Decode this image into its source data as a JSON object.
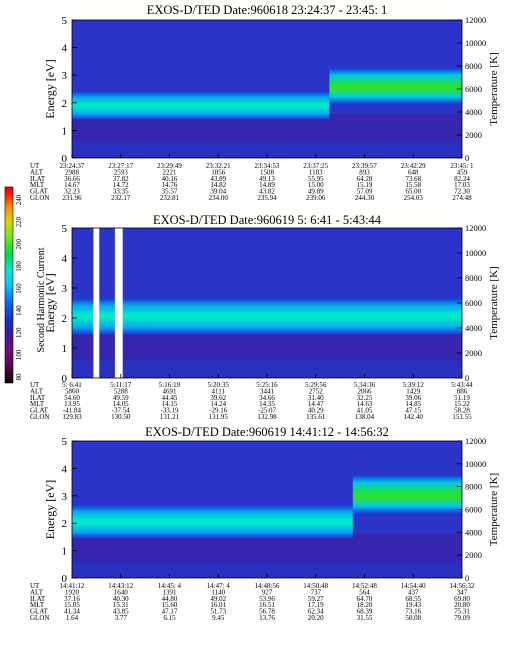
{
  "colorbar": {
    "label": "Second Harmonic Current",
    "ticks": [
      "240",
      "220",
      "200",
      "180",
      "160",
      "140",
      "120",
      "100",
      "80"
    ],
    "colors": [
      "#000000",
      "#5a0050",
      "#7a0a78",
      "#3a1aa0",
      "#1530c8",
      "#0a6ef0",
      "#00c8ff",
      "#00e8c0",
      "#00dc3c",
      "#6ae81a",
      "#d8d800",
      "#ff8c00",
      "#ff1e00",
      "#f00000"
    ]
  },
  "chart_data": [
    {
      "type": "heatmap",
      "title": "EXOS-D/TED   Date:960618  23:24:37 - 23:45: 1",
      "ylabel": "Energy [eV]",
      "y2label": "Temperature [K]",
      "ylim": [
        0,
        5
      ],
      "y2lim": [
        0,
        12000
      ],
      "yticks": [
        "0",
        "1",
        "2",
        "3",
        "4",
        "5"
      ],
      "y2ticks": [
        "0",
        "2000",
        "4000",
        "6000",
        "8000",
        "10000",
        "12000"
      ],
      "row_labels": [
        "UT",
        "ALT",
        "ILAT",
        "MLT",
        "GLAT",
        "GLON"
      ],
      "columns": [
        [
          "23:24:37",
          "2988",
          "36.66",
          "14.67",
          "32.23",
          "231.96"
        ],
        [
          "23:27:17",
          "2593",
          "37.82",
          "14.72",
          "33.35",
          "232.17"
        ],
        [
          "23:29:49",
          "2221",
          "40.16",
          "14.76",
          "35.57",
          "232.81"
        ],
        [
          "23:32:21",
          "1856",
          "43.89",
          "14.82",
          "39.04",
          "234.00"
        ],
        [
          "23:34:53",
          "1508",
          "49.13",
          "14.89",
          "43.82",
          "235.94"
        ],
        [
          "23:37:25",
          "1183",
          "55.95",
          "15.00",
          "49.89",
          "239.06"
        ],
        [
          "23:39:57",
          "893",
          "64.28",
          "15.19",
          "57.09",
          "244.30"
        ],
        [
          "23:42:29",
          "648",
          "73.68",
          "15.58",
          "65.00",
          "254.03"
        ],
        [
          "23:45: 1",
          "459",
          "82.24",
          "17.03",
          "72.30",
          "274.48"
        ]
      ],
      "bands": [
        {
          "x0": 0,
          "x1": 0.66,
          "energy_lo": 1.75,
          "energy_hi": 2.05,
          "level": "high"
        },
        {
          "x0": 0.66,
          "x1": 1.0,
          "energy_lo": 2.3,
          "energy_hi": 2.9,
          "level": "high"
        }
      ]
    },
    {
      "type": "heatmap",
      "title": "EXOS-D/TED   Date:960619  5: 6:41 - 5:43:44",
      "ylabel": "Energy [eV]",
      "y2label": "Temperature [K]",
      "ylim": [
        0,
        5
      ],
      "y2lim": [
        0,
        12000
      ],
      "yticks": [
        "0",
        "1",
        "2",
        "3",
        "4",
        "5"
      ],
      "y2ticks": [
        "0",
        "2000",
        "4000",
        "6000",
        "8000",
        "10000",
        "12000"
      ],
      "row_labels": [
        "UT",
        "ALT",
        "ILAT",
        "MLT",
        "GLAT",
        "GLON"
      ],
      "columns": [
        [
          "5: 6:41",
          "5860",
          "54.60",
          "13.95",
          "-41.84",
          "129.83"
        ],
        [
          "5:11:17",
          "5288",
          "49.59",
          "14.05",
          "-37.54",
          "130.50"
        ],
        [
          "5:16:19",
          "4691",
          "44.45",
          "14.15",
          "-33.19",
          "131.21"
        ],
        [
          "5:20:35",
          "4111",
          "39.62",
          "14.24",
          "-29.16",
          "131.95"
        ],
        [
          "5:25:16",
          "3441",
          "34.66",
          "14.35",
          "-25.07",
          "132.98"
        ],
        [
          "5:29:56",
          "2752",
          "31.40",
          "14.47",
          "40.29",
          "135.61"
        ],
        [
          "5:34:36",
          "2066",
          "32.25",
          "14.63",
          "41.05",
          "138.04"
        ],
        [
          "5:39:12",
          "1429",
          "39.06",
          "14.85",
          "47.15",
          "142.40"
        ],
        [
          "5:43:44",
          "886",
          "51.19",
          "15.22",
          "58.28",
          "151.55"
        ]
      ],
      "gaps": [
        [
          0.055,
          0.07
        ],
        [
          0.11,
          0.13
        ]
      ],
      "bands": [
        {
          "x0": 0,
          "x1": 1.0,
          "energy_lo": 1.8,
          "energy_hi": 2.3,
          "level": "high"
        }
      ]
    },
    {
      "type": "heatmap",
      "title": "EXOS-D/TED   Date:960619  14:41:12 - 14:56:32",
      "ylabel": "Energy [eV]",
      "y2label": "Temperature [K]",
      "ylim": [
        0,
        5
      ],
      "y2lim": [
        0,
        12000
      ],
      "yticks": [
        "0",
        "1",
        "2",
        "3",
        "4",
        "5"
      ],
      "y2ticks": [
        "0",
        "2000",
        "4000",
        "6000",
        "8000",
        "10000",
        "12000"
      ],
      "row_labels": [
        "UT",
        "ALT",
        "ILAT",
        "MLT",
        "GLAT",
        "GLON"
      ],
      "columns": [
        [
          "14:41:12",
          "1920",
          "37.16",
          "15.05",
          "41.34",
          "1.64"
        ],
        [
          "14:43:12",
          "1640",
          "40.30",
          "15.31",
          "43.85",
          "3.77"
        ],
        [
          "14:45: 4",
          "1391",
          "44.80",
          "15.60",
          "47.17",
          "6.15"
        ],
        [
          "14:47: 4",
          "1140",
          "49.02",
          "16.01",
          "51.73",
          "9.45"
        ],
        [
          "14:48:56",
          "927",
          "53.96",
          "16.51",
          "56.78",
          "13.76"
        ],
        [
          "14:50:48",
          "737",
          "59.27",
          "17.19",
          "62.34",
          "20.20"
        ],
        [
          "14:52:48",
          "564",
          "64.70",
          "18.20",
          "68.39",
          "31.55"
        ],
        [
          "14:54:40",
          "437",
          "68.55",
          "19.43",
          "73.16",
          "50.08"
        ],
        [
          "14:56:32",
          "347",
          "69.80",
          "20.80",
          "75.31",
          "79.09"
        ]
      ],
      "bands": [
        {
          "x0": 0,
          "x1": 0.72,
          "energy_lo": 1.8,
          "energy_hi": 2.3,
          "level": "high"
        },
        {
          "x0": 0.72,
          "x1": 1.0,
          "energy_lo": 2.7,
          "energy_hi": 3.4,
          "level": "high"
        }
      ]
    }
  ]
}
